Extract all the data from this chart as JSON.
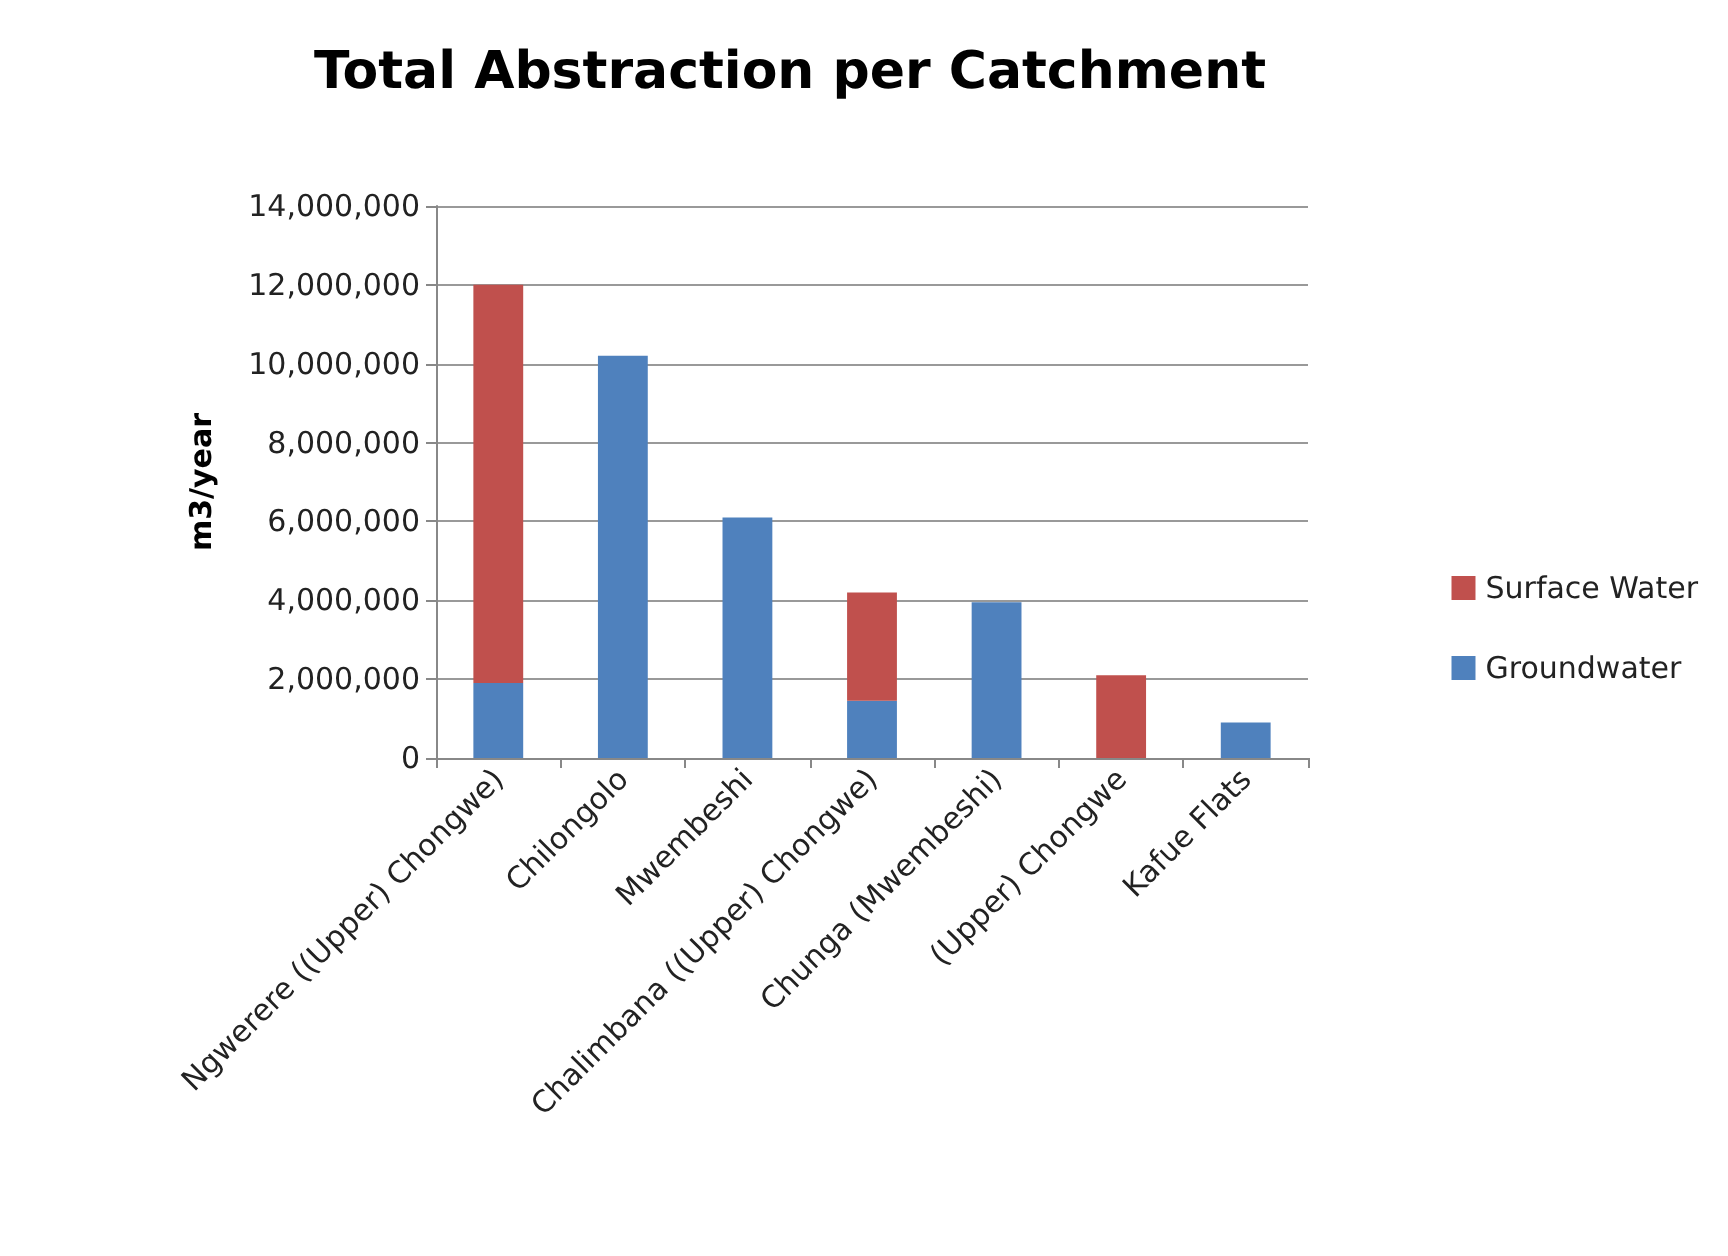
{
  "chart_data": {
    "type": "bar",
    "title": "Total Abstraction per Catchment",
    "ylabel": "m3/year",
    "categories": [
      "Ngwerere ((Upper) Chongwe)",
      "Chilongolo",
      "Mwembeshi",
      "Chalimbana ((Upper) Chongwe)",
      "Chunga (Mwembeshi)",
      "(Upper) Chongwe",
      "Kafue Flats"
    ],
    "series": [
      {
        "name": "Groundwater",
        "color": "#4f81bd",
        "values": [
          1900000,
          10200000,
          6100000,
          1450000,
          3950000,
          0,
          900000
        ]
      },
      {
        "name": "Surface Water",
        "color": "#c0504d",
        "values": [
          10100000,
          0,
          0,
          2750000,
          0,
          2100000,
          0
        ]
      }
    ],
    "stacked": true,
    "ylim": [
      0,
      14000000
    ],
    "yticks": [
      0,
      {
        "value": 2000000,
        "label": "2,000,000"
      },
      {
        "value": 4000000,
        "label": "4,000,000"
      },
      {
        "value": 6000000,
        "label": "6,000,000"
      },
      {
        "value": 8000000,
        "label": "8,000,000"
      },
      {
        "value": 10000000,
        "label": "10,000,000"
      },
      {
        "value": 12000000,
        "label": "12,000,000"
      },
      {
        "value": 14000000,
        "label": "14,000,000"
      }
    ],
    "grid": "y",
    "legend": "right"
  }
}
